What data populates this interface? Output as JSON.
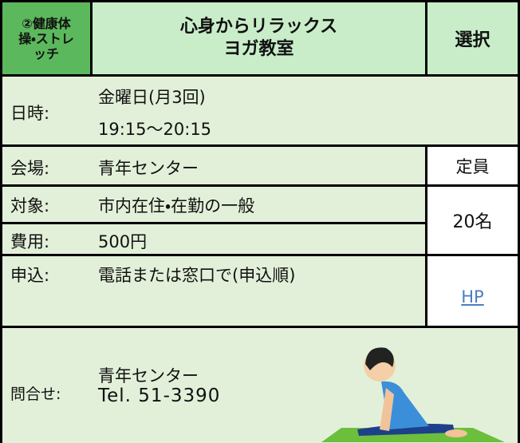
{
  "header": {
    "category": "②健康体操・ストレッチ",
    "title": [
      "心身からリラックス",
      "ヨガ教室"
    ],
    "select": "選択"
  },
  "schedule": {
    "label": "日時:",
    "values": [
      "金曜日(月3回)",
      "19:15～20:15"
    ]
  },
  "venue": {
    "label": "会場:",
    "value": "青年センター"
  },
  "capacity": {
    "label": "定員",
    "value": "20名"
  },
  "target": {
    "label": "対象:",
    "value": "市内在住・在勤の一般"
  },
  "fee": {
    "label": "費用:",
    "value": "500円"
  },
  "apply": {
    "label": "申込:",
    "value": "電話または窓口で(申込順)",
    "link": "HP"
  },
  "contact": {
    "label": "問合せ:",
    "values": [
      "青年センター",
      "Tel. 51-3390"
    ]
  }
}
